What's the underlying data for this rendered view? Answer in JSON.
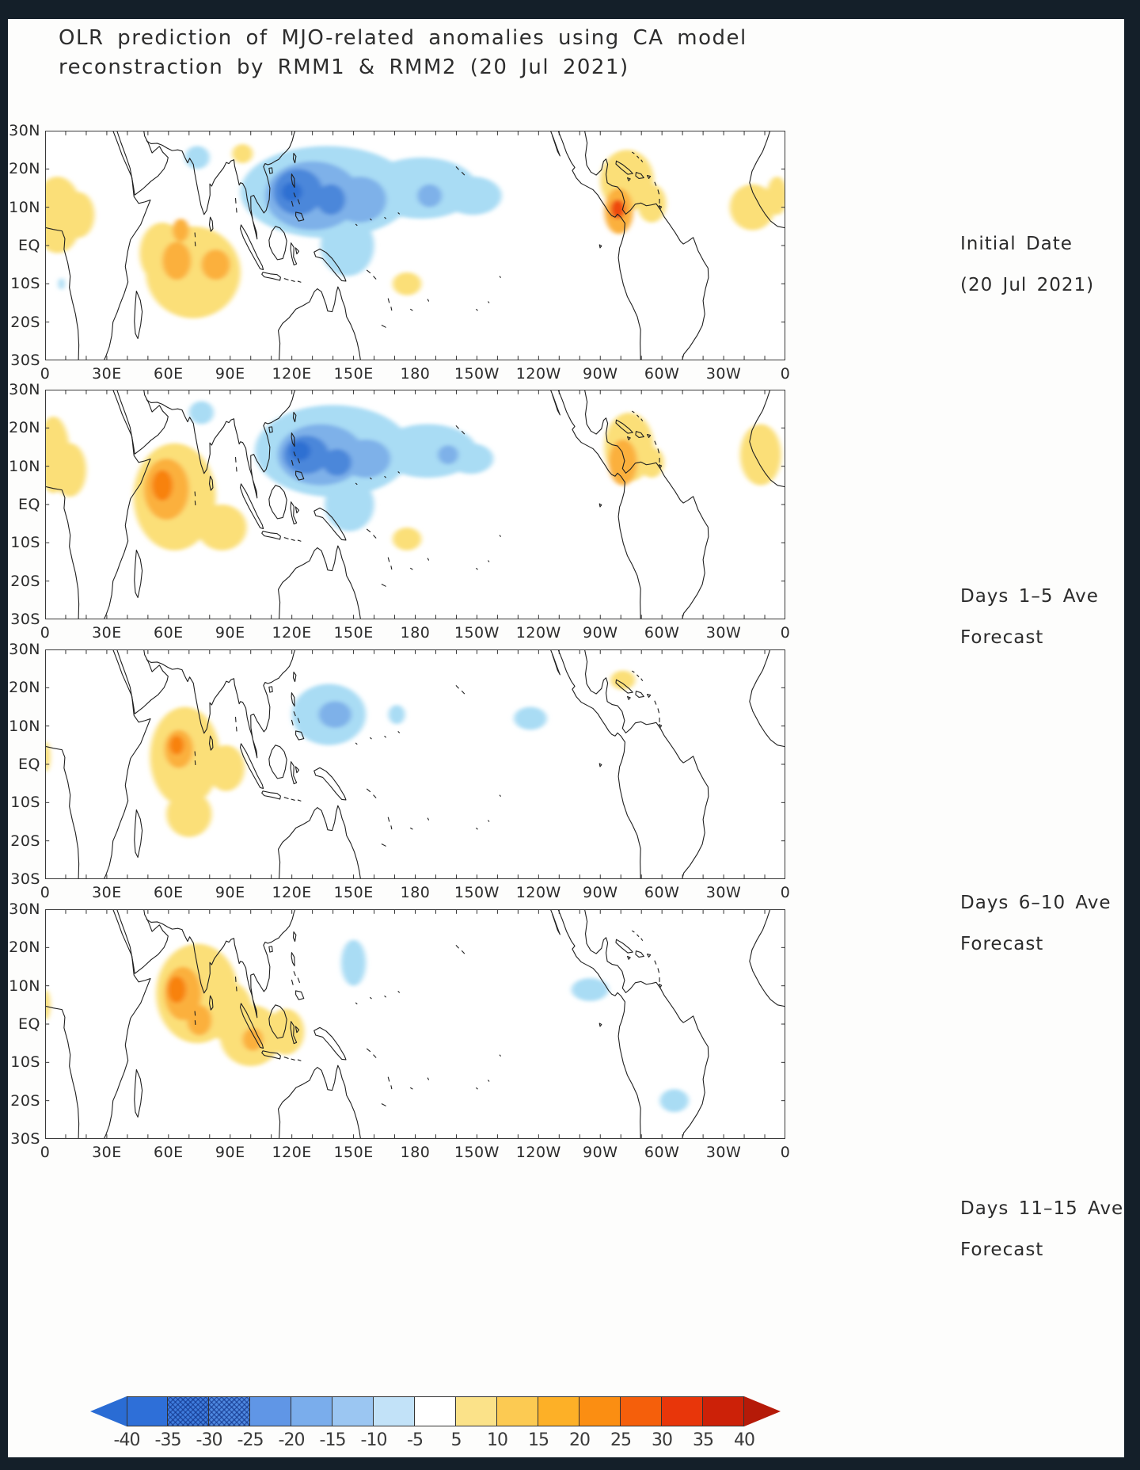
{
  "title_line1": "OLR prediction of MJO-related anomalies using CA model",
  "title_line2": "reconstraction by RMM1 & RMM2 (20 Jul 2021)",
  "chart_data": {
    "type": "heatmap",
    "subtype": "filled-contour-world-maps",
    "title": "OLR prediction of MJO-related anomalies using CA model reconstraction by RMM1 & RMM2 (20 Jul 2021)",
    "lat_range": [
      -30,
      30
    ],
    "lon_range": [
      0,
      360
    ],
    "axes": {
      "lat_ticks": [
        "30N",
        "20N",
        "10N",
        "EQ",
        "10S",
        "20S",
        "30S"
      ],
      "lon_ticks": [
        "0",
        "30E",
        "60E",
        "90E",
        "120E",
        "150E",
        "180",
        "150W",
        "120W",
        "90W",
        "60W",
        "30W",
        "0"
      ]
    },
    "palette": {
      "y1": "#fbdf78",
      "o1": "#fbb03c",
      "o2": "#f8820f",
      "r": "#ee4a0c",
      "c1": "#a9dcf4",
      "c2": "#7eb1e9",
      "b1": "#4c87da",
      "b2": "#2f70d2"
    },
    "panels": [
      {
        "id": "initial",
        "side_label": [
          "Initial Date",
          "(20 Jul 2021)"
        ],
        "anomalies": [
          [
            6,
            8,
            12,
            10,
            "y1"
          ],
          [
            16,
            8,
            8,
            6,
            "y1"
          ],
          [
            96,
            24,
            5,
            2.5,
            "y1"
          ],
          [
            72,
            -7,
            23,
            12,
            "y1"
          ],
          [
            57,
            -2,
            11,
            8,
            "y1"
          ],
          [
            64,
            -4,
            7,
            5,
            "o1"
          ],
          [
            83,
            -5,
            7,
            4,
            "o1"
          ],
          [
            66,
            4,
            4,
            3,
            "o1"
          ],
          [
            176,
            -10,
            7,
            3,
            "y1"
          ],
          [
            8,
            -10,
            1.5,
            1.5,
            "c1"
          ],
          [
            283,
            17,
            13,
            8,
            "y1"
          ],
          [
            295,
            11,
            7,
            5,
            "y1"
          ],
          [
            279,
            9,
            7,
            6,
            "o1"
          ],
          [
            278.5,
            9.5,
            3.5,
            2.5,
            "r"
          ],
          [
            344,
            10,
            11,
            6,
            "y1"
          ],
          [
            356,
            13,
            5,
            5,
            "y1"
          ],
          [
            74,
            23,
            6,
            3,
            "c1"
          ],
          [
            137,
            14,
            42,
            12,
            "c1"
          ],
          [
            183,
            15,
            27,
            8,
            "c1"
          ],
          [
            147,
            0,
            13,
            8,
            "c1"
          ],
          [
            208,
            13,
            14,
            5,
            "c1"
          ],
          [
            130,
            13,
            23,
            9,
            "c2"
          ],
          [
            153,
            12,
            13,
            6,
            "c2"
          ],
          [
            187,
            13,
            6,
            3,
            "c2"
          ],
          [
            123,
            14,
            12,
            6,
            "b1"
          ],
          [
            139,
            12,
            7,
            4,
            "b1"
          ],
          [
            120,
            14,
            5,
            2.5,
            "b2"
          ]
        ]
      },
      {
        "id": "days-1-5",
        "side_label": [
          "Days 1–5 Ave",
          "Forecast"
        ],
        "anomalies": [
          [
            4,
            13,
            8,
            10,
            "y1"
          ],
          [
            12,
            9,
            8,
            7,
            "y1"
          ],
          [
            63,
            2,
            20,
            14,
            "y1"
          ],
          [
            86,
            -6,
            12,
            6,
            "y1"
          ],
          [
            59,
            4,
            11,
            8,
            "o1"
          ],
          [
            57,
            5,
            5,
            4,
            "o2"
          ],
          [
            76,
            24,
            6,
            3,
            "c1"
          ],
          [
            176,
            -9,
            7,
            3,
            "y1"
          ],
          [
            284,
            15,
            12,
            9,
            "y1"
          ],
          [
            295,
            11,
            6,
            4,
            "y1"
          ],
          [
            281,
            11,
            7,
            6,
            "o1"
          ],
          [
            348,
            13,
            10,
            8,
            "y1"
          ],
          [
            140,
            14,
            38,
            12,
            "c1"
          ],
          [
            186,
            14,
            24,
            7,
            "c1"
          ],
          [
            148,
            0,
            12,
            7,
            "c1"
          ],
          [
            207,
            12,
            11,
            4,
            "c1"
          ],
          [
            134,
            13,
            21,
            8,
            "c2"
          ],
          [
            156,
            12,
            12,
            5,
            "c2"
          ],
          [
            196,
            13,
            5,
            2.5,
            "c2"
          ],
          [
            127,
            13,
            11,
            5,
            "b1"
          ],
          [
            142,
            11,
            7,
            3.5,
            "b1"
          ],
          [
            124,
            14,
            5,
            2.5,
            "b2"
          ]
        ]
      },
      {
        "id": "days-6-10",
        "side_label": [
          "Days 6–10 Ave",
          "Forecast"
        ],
        "anomalies": [
          [
            68,
            2,
            17,
            13,
            "y1"
          ],
          [
            88,
            -1,
            9,
            6,
            "y1"
          ],
          [
            70,
            -13,
            11,
            6,
            "y1"
          ],
          [
            65,
            4,
            7,
            5,
            "o1"
          ],
          [
            64,
            5,
            3.5,
            2.5,
            "o2"
          ],
          [
            0,
            2,
            2.5,
            4,
            "y1"
          ],
          [
            138,
            13,
            18,
            8,
            "c1"
          ],
          [
            141,
            13,
            8,
            3.5,
            "c2"
          ],
          [
            171,
            13,
            4,
            2.5,
            "c1"
          ],
          [
            236,
            12,
            8,
            3,
            "c1"
          ],
          [
            281,
            22,
            6,
            2.5,
            "y1"
          ]
        ]
      },
      {
        "id": "days-11-15",
        "side_label": [
          "Days 11–15 Ave",
          "Forecast"
        ],
        "anomalies": [
          [
            74,
            8,
            20,
            13,
            "y1"
          ],
          [
            90,
            3,
            11,
            8,
            "y1"
          ],
          [
            100,
            -3,
            15,
            8,
            "y1"
          ],
          [
            117,
            -2,
            9,
            6,
            "y1"
          ],
          [
            67,
            8,
            9,
            7,
            "o1"
          ],
          [
            64,
            9,
            4.5,
            3.5,
            "o2"
          ],
          [
            75,
            1,
            6,
            4,
            "o1"
          ],
          [
            101,
            -4,
            5,
            3,
            "o1"
          ],
          [
            0,
            5,
            2.5,
            4,
            "y1"
          ],
          [
            150,
            16,
            6,
            6,
            "c1"
          ],
          [
            265,
            9,
            9,
            3,
            "c1"
          ],
          [
            306,
            -20,
            7,
            3,
            "c1"
          ]
        ]
      }
    ],
    "colorbar": {
      "labels": [
        "-40",
        "-35",
        "-30",
        "-25",
        "-20",
        "-15",
        "-10",
        "-5",
        "5",
        "10",
        "15",
        "20",
        "25",
        "30",
        "35",
        "40"
      ],
      "colors": [
        "#2e6fd8",
        "#3f7cdc",
        "#4e88e0",
        "#6096e6",
        "#7aadec",
        "#9bc6f2",
        "#c2e2f8",
        "#ffffff",
        "#fbe289",
        "#fcca52",
        "#fdb027",
        "#fb8e12",
        "#f55f0b",
        "#e8360a",
        "#cc2108"
      ],
      "hatched": [
        1,
        2
      ],
      "arrow_left": "#2a6cd4",
      "arrow_right": "#b51a08"
    }
  }
}
